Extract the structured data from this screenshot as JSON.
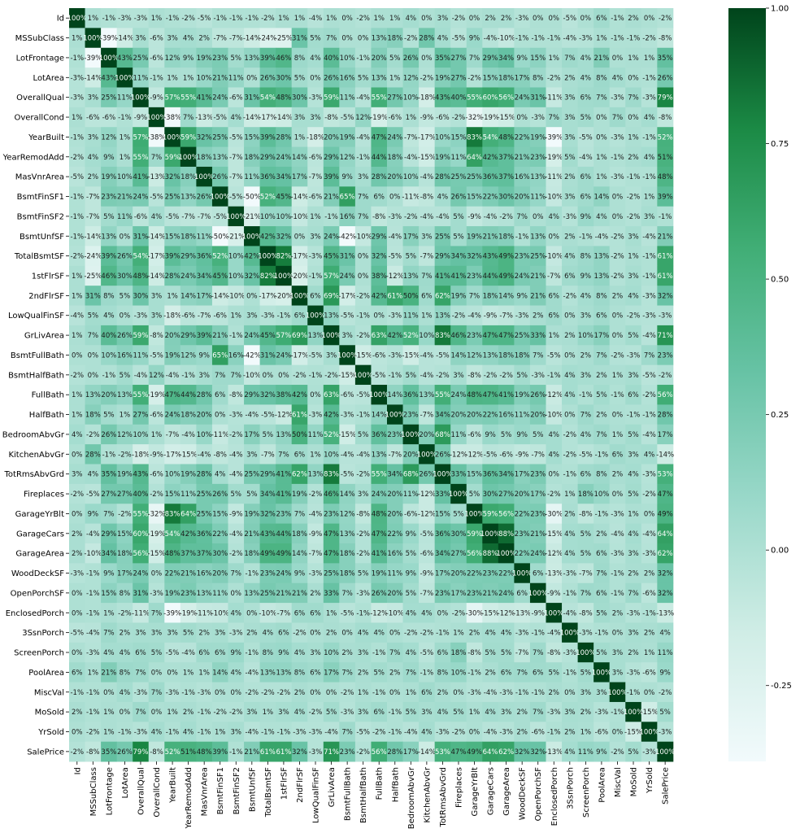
{
  "chart_data": {
    "type": "heatmap",
    "title": "",
    "xlabel": "",
    "ylabel": "",
    "labels": [
      "Id",
      "MSSubClass",
      "LotFrontage",
      "LotArea",
      "OverallQual",
      "OverallCond",
      "YearBuilt",
      "YearRemodAdd",
      "MasVnrArea",
      "BsmtFinSF1",
      "BsmtFinSF2",
      "BsmtUnfSF",
      "TotalBsmtSF",
      "1stFlrSF",
      "2ndFlrSF",
      "LowQualFinSF",
      "GrLivArea",
      "BsmtFullBath",
      "BsmtHalfBath",
      "FullBath",
      "HalfBath",
      "BedroomAbvGr",
      "KitchenAbvGr",
      "TotRmsAbvGrd",
      "Fireplaces",
      "GarageYrBlt",
      "GarageCars",
      "GarageArea",
      "WoodDeckSF",
      "OpenPorchSF",
      "EnclosedPorch",
      "3SsnPorch",
      "ScreenPorch",
      "PoolArea",
      "MiscVal",
      "MoSold",
      "YrSold",
      "SalePrice"
    ],
    "matrix": [
      [
        100,
        1,
        -1,
        -3,
        -3,
        1,
        -1,
        -2,
        -5,
        -1,
        -1,
        -1,
        -2,
        1,
        1,
        -4,
        1,
        0,
        -2,
        1,
        1,
        4,
        0,
        3,
        -2,
        0,
        2,
        2,
        -3,
        0,
        0,
        -5,
        0,
        6,
        -1,
        2,
        0,
        -2
      ],
      [
        1,
        100,
        -39,
        -14,
        3,
        -6,
        3,
        4,
        2,
        -7,
        -7,
        -14,
        -24,
        -25,
        31,
        5,
        7,
        0,
        0,
        13,
        18,
        -2,
        28,
        4,
        -5,
        9,
        -4,
        -10,
        -1,
        -1,
        -1,
        -4,
        -3,
        1,
        -1,
        -1,
        -2,
        -8
      ],
      [
        -1,
        -39,
        100,
        43,
        25,
        -6,
        12,
        9,
        19,
        23,
        5,
        13,
        39,
        46,
        8,
        4,
        40,
        10,
        -1,
        20,
        5,
        26,
        0,
        35,
        27,
        7,
        29,
        34,
        9,
        15,
        1,
        7,
        4,
        21,
        0,
        1,
        1,
        35
      ],
      [
        -3,
        -14,
        43,
        100,
        11,
        -1,
        1,
        1,
        10,
        21,
        11,
        0,
        26,
        30,
        5,
        0,
        26,
        16,
        5,
        13,
        1,
        12,
        -2,
        19,
        27,
        -2,
        15,
        18,
        17,
        8,
        -2,
        2,
        4,
        8,
        4,
        0,
        -1,
        26
      ],
      [
        -3,
        3,
        25,
        11,
        100,
        -9,
        57,
        55,
        41,
        24,
        -6,
        31,
        54,
        48,
        30,
        -3,
        59,
        11,
        -4,
        55,
        27,
        10,
        -18,
        43,
        40,
        55,
        60,
        56,
        24,
        31,
        -11,
        3,
        6,
        7,
        -3,
        7,
        -3,
        79
      ],
      [
        1,
        -6,
        -6,
        -1,
        -9,
        100,
        -38,
        7,
        -13,
        -5,
        4,
        -14,
        -17,
        -14,
        3,
        3,
        -8,
        -5,
        12,
        -19,
        -6,
        1,
        -9,
        -6,
        -2,
        -32,
        -19,
        -15,
        0,
        -3,
        7,
        3,
        5,
        0,
        7,
        0,
        4,
        -8
      ],
      [
        -1,
        3,
        12,
        1,
        57,
        -38,
        100,
        59,
        32,
        25,
        -5,
        15,
        39,
        28,
        1,
        -18,
        20,
        19,
        -4,
        47,
        24,
        -7,
        -17,
        10,
        15,
        83,
        54,
        48,
        22,
        19,
        -39,
        3,
        -5,
        0,
        -3,
        1,
        -1,
        52
      ],
      [
        -2,
        4,
        9,
        1,
        55,
        7,
        59,
        100,
        18,
        13,
        -7,
        18,
        29,
        24,
        14,
        -6,
        29,
        12,
        -1,
        44,
        18,
        -4,
        -15,
        19,
        11,
        64,
        42,
        37,
        21,
        23,
        -19,
        5,
        -4,
        1,
        -1,
        2,
        4,
        51
      ],
      [
        -5,
        2,
        19,
        10,
        41,
        -13,
        32,
        18,
        100,
        26,
        -7,
        11,
        36,
        34,
        17,
        -7,
        39,
        9,
        3,
        28,
        20,
        10,
        -4,
        28,
        25,
        25,
        36,
        37,
        16,
        13,
        -11,
        2,
        6,
        1,
        -3,
        -1,
        -1,
        48
      ],
      [
        -1,
        -7,
        23,
        21,
        24,
        -5,
        25,
        13,
        26,
        100,
        -5,
        -50,
        52,
        45,
        -14,
        -6,
        21,
        65,
        7,
        6,
        0,
        -11,
        -8,
        4,
        26,
        15,
        22,
        30,
        20,
        11,
        -10,
        3,
        6,
        14,
        0,
        -2,
        1,
        39
      ],
      [
        -1,
        -7,
        5,
        11,
        -6,
        4,
        -5,
        -7,
        -7,
        -5,
        100,
        -21,
        10,
        10,
        -10,
        1,
        -1,
        16,
        7,
        -8,
        -3,
        -2,
        -4,
        -4,
        5,
        -9,
        -4,
        -2,
        7,
        0,
        4,
        -3,
        9,
        4,
        0,
        -2,
        3,
        -1
      ],
      [
        -1,
        -14,
        13,
        0,
        31,
        -14,
        15,
        18,
        11,
        -50,
        -21,
        100,
        42,
        32,
        0,
        3,
        24,
        -42,
        -10,
        29,
        -4,
        17,
        3,
        25,
        5,
        19,
        21,
        18,
        -1,
        13,
        0,
        2,
        -1,
        -4,
        -2,
        3,
        -4,
        21
      ],
      [
        -2,
        -24,
        39,
        26,
        54,
        -17,
        39,
        29,
        36,
        52,
        10,
        42,
        100,
        82,
        -17,
        -3,
        45,
        31,
        0,
        32,
        -5,
        5,
        -7,
        29,
        34,
        32,
        43,
        49,
        23,
        25,
        -10,
        4,
        8,
        13,
        -2,
        1,
        -1,
        61
      ],
      [
        1,
        -25,
        46,
        30,
        48,
        -14,
        28,
        24,
        34,
        45,
        10,
        32,
        82,
        100,
        -20,
        -1,
        57,
        24,
        0,
        38,
        -12,
        13,
        7,
        41,
        41,
        23,
        44,
        49,
        24,
        21,
        -7,
        6,
        9,
        13,
        -2,
        3,
        -1,
        61
      ],
      [
        1,
        31,
        8,
        5,
        30,
        3,
        1,
        14,
        17,
        -14,
        -10,
        0,
        -17,
        -20,
        100,
        6,
        69,
        -17,
        -2,
        42,
        61,
        50,
        6,
        62,
        19,
        7,
        18,
        14,
        9,
        21,
        6,
        -2,
        4,
        8,
        2,
        4,
        -3,
        32
      ],
      [
        -4,
        5,
        4,
        0,
        -3,
        3,
        -18,
        -6,
        -7,
        -6,
        1,
        3,
        -3,
        -1,
        6,
        100,
        13,
        -5,
        -1,
        0,
        -3,
        11,
        1,
        13,
        -2,
        -4,
        -9,
        -7,
        -3,
        2,
        6,
        0,
        3,
        6,
        0,
        -2,
        -3,
        -3
      ],
      [
        1,
        7,
        40,
        26,
        59,
        -8,
        20,
        29,
        39,
        21,
        -1,
        24,
        45,
        57,
        69,
        13,
        100,
        3,
        -2,
        63,
        42,
        52,
        10,
        83,
        46,
        23,
        47,
        47,
        25,
        33,
        1,
        2,
        10,
        17,
        0,
        5,
        -4,
        71
      ],
      [
        0,
        0,
        10,
        16,
        11,
        -5,
        19,
        12,
        9,
        65,
        16,
        -42,
        31,
        24,
        -17,
        -5,
        3,
        100,
        -15,
        -6,
        -3,
        -15,
        -4,
        -5,
        14,
        12,
        13,
        18,
        18,
        7,
        -5,
        0,
        2,
        7,
        -2,
        -3,
        7,
        23
      ],
      [
        -2,
        0,
        -1,
        5,
        -4,
        12,
        -4,
        -1,
        3,
        7,
        7,
        -10,
        0,
        0,
        -2,
        -1,
        -2,
        -15,
        100,
        -5,
        -1,
        5,
        -4,
        -2,
        3,
        -8,
        -2,
        -2,
        5,
        -3,
        -1,
        4,
        3,
        2,
        1,
        3,
        -5,
        -2
      ],
      [
        1,
        13,
        20,
        13,
        55,
        -19,
        47,
        44,
        28,
        6,
        -8,
        29,
        32,
        38,
        42,
        0,
        63,
        -6,
        -5,
        100,
        14,
        36,
        13,
        55,
        24,
        48,
        47,
        41,
        19,
        26,
        -12,
        4,
        -1,
        5,
        -1,
        6,
        -2,
        56
      ],
      [
        1,
        18,
        5,
        1,
        27,
        -6,
        24,
        18,
        20,
        0,
        -3,
        -4,
        -5,
        -12,
        61,
        -3,
        42,
        -3,
        -1,
        14,
        100,
        23,
        -7,
        34,
        20,
        20,
        22,
        16,
        11,
        20,
        -10,
        0,
        7,
        2,
        0,
        -1,
        -1,
        28
      ],
      [
        4,
        -2,
        26,
        12,
        10,
        1,
        -7,
        -4,
        10,
        -11,
        -2,
        17,
        5,
        13,
        50,
        11,
        52,
        -15,
        5,
        36,
        23,
        100,
        20,
        68,
        11,
        -6,
        9,
        5,
        9,
        5,
        4,
        -2,
        4,
        7,
        1,
        5,
        -4,
        17
      ],
      [
        0,
        28,
        -1,
        -2,
        -18,
        -9,
        -17,
        -15,
        -4,
        -8,
        -4,
        3,
        -7,
        7,
        6,
        1,
        10,
        -4,
        -4,
        13,
        -7,
        20,
        100,
        26,
        -12,
        -12,
        -5,
        -6,
        -9,
        -7,
        4,
        -2,
        -5,
        -1,
        6,
        3,
        4,
        -14
      ],
      [
        3,
        4,
        35,
        19,
        43,
        -6,
        10,
        19,
        28,
        4,
        -4,
        25,
        29,
        41,
        62,
        13,
        83,
        -5,
        -2,
        55,
        34,
        68,
        26,
        100,
        33,
        15,
        36,
        34,
        17,
        23,
        0,
        -1,
        6,
        8,
        2,
        4,
        -3,
        53
      ],
      [
        -2,
        -5,
        27,
        27,
        40,
        -2,
        15,
        11,
        25,
        26,
        5,
        5,
        34,
        41,
        19,
        -2,
        46,
        14,
        3,
        24,
        20,
        11,
        -12,
        33,
        100,
        5,
        30,
        27,
        20,
        17,
        -2,
        1,
        18,
        10,
        0,
        5,
        -2,
        47
      ],
      [
        0,
        9,
        7,
        -2,
        55,
        -32,
        83,
        64,
        25,
        15,
        -9,
        19,
        32,
        23,
        7,
        -4,
        23,
        12,
        -8,
        48,
        20,
        -6,
        -12,
        15,
        5,
        100,
        59,
        56,
        22,
        23,
        -30,
        2,
        -8,
        -1,
        -3,
        1,
        0,
        49
      ],
      [
        2,
        -4,
        29,
        15,
        60,
        -19,
        54,
        42,
        36,
        22,
        -4,
        21,
        43,
        44,
        18,
        -9,
        47,
        13,
        -2,
        47,
        22,
        9,
        -5,
        36,
        30,
        59,
        100,
        88,
        23,
        21,
        -15,
        4,
        5,
        2,
        -4,
        4,
        -4,
        64
      ],
      [
        2,
        -10,
        34,
        18,
        56,
        -15,
        48,
        37,
        37,
        30,
        -2,
        18,
        49,
        49,
        14,
        -7,
        47,
        18,
        -2,
        41,
        16,
        5,
        -6,
        34,
        27,
        56,
        88,
        100,
        22,
        24,
        -12,
        4,
        5,
        6,
        -3,
        3,
        -3,
        62
      ],
      [
        -3,
        -1,
        9,
        17,
        24,
        0,
        22,
        21,
        16,
        20,
        7,
        -1,
        23,
        24,
        9,
        -3,
        25,
        18,
        5,
        19,
        11,
        9,
        -9,
        17,
        20,
        22,
        23,
        22,
        100,
        6,
        -13,
        -3,
        -7,
        7,
        -1,
        2,
        2,
        32
      ],
      [
        0,
        -1,
        15,
        8,
        31,
        -3,
        19,
        23,
        13,
        11,
        0,
        13,
        25,
        21,
        21,
        2,
        33,
        7,
        -3,
        26,
        20,
        5,
        -7,
        23,
        17,
        23,
        21,
        24,
        6,
        100,
        -9,
        -1,
        7,
        6,
        -1,
        7,
        -6,
        32
      ],
      [
        0,
        -1,
        1,
        -2,
        -11,
        7,
        -39,
        -19,
        -11,
        -10,
        4,
        0,
        -10,
        -7,
        6,
        6,
        1,
        -5,
        -1,
        -12,
        -10,
        4,
        4,
        0,
        -2,
        -30,
        -15,
        -12,
        -13,
        -9,
        100,
        -4,
        -8,
        5,
        2,
        -3,
        -1,
        -13
      ],
      [
        -5,
        -4,
        7,
        2,
        3,
        3,
        3,
        5,
        2,
        3,
        -3,
        2,
        4,
        6,
        -2,
        0,
        2,
        0,
        4,
        4,
        0,
        -2,
        -2,
        -1,
        1,
        2,
        4,
        4,
        -3,
        -1,
        -4,
        100,
        -3,
        -1,
        0,
        3,
        2,
        4
      ],
      [
        0,
        -3,
        4,
        4,
        6,
        5,
        -5,
        -4,
        6,
        6,
        9,
        -1,
        8,
        9,
        4,
        3,
        10,
        2,
        3,
        -1,
        7,
        4,
        -5,
        6,
        18,
        -8,
        5,
        5,
        -7,
        7,
        -8,
        -3,
        100,
        5,
        3,
        2,
        1,
        11
      ],
      [
        6,
        1,
        21,
        8,
        7,
        0,
        0,
        1,
        1,
        14,
        4,
        -4,
        13,
        13,
        8,
        6,
        17,
        7,
        2,
        5,
        2,
        7,
        -1,
        8,
        10,
        -1,
        2,
        6,
        7,
        6,
        5,
        -1,
        5,
        100,
        3,
        -3,
        -6,
        9
      ],
      [
        -1,
        -1,
        0,
        4,
        -3,
        7,
        -3,
        -1,
        -3,
        0,
        0,
        -2,
        -2,
        -2,
        2,
        0,
        0,
        -2,
        1,
        -1,
        0,
        1,
        6,
        2,
        0,
        -3,
        -4,
        -3,
        -1,
        -1,
        2,
        0,
        3,
        3,
        100,
        -1,
        0,
        -2
      ],
      [
        2,
        -1,
        1,
        0,
        7,
        0,
        1,
        2,
        -1,
        -2,
        -2,
        3,
        1,
        3,
        4,
        -2,
        5,
        -3,
        3,
        6,
        -1,
        5,
        3,
        4,
        5,
        1,
        4,
        3,
        2,
        7,
        -3,
        3,
        2,
        -3,
        -1,
        100,
        -15,
        5
      ],
      [
        0,
        -2,
        1,
        -1,
        -3,
        4,
        -1,
        4,
        -1,
        1,
        3,
        -4,
        -1,
        -1,
        -3,
        -3,
        -4,
        7,
        -5,
        -2,
        -1,
        -4,
        4,
        -3,
        -2,
        0,
        -4,
        -3,
        2,
        -6,
        -1,
        2,
        1,
        -6,
        0,
        -15,
        100,
        -3
      ],
      [
        -2,
        -8,
        35,
        26,
        79,
        -8,
        52,
        51,
        48,
        39,
        -1,
        21,
        61,
        61,
        32,
        -3,
        71,
        23,
        -2,
        56,
        28,
        17,
        -14,
        53,
        47,
        49,
        64,
        62,
        32,
        32,
        -13,
        4,
        11,
        9,
        -2,
        5,
        -3,
        100
      ]
    ],
    "cell_format": "percent",
    "colorscale": "Greens (light to dark)",
    "color_low": "#f2fafc",
    "color_high": "#00441b",
    "vmin": -0.39,
    "vmax": 1.0,
    "colorbar_ticks": [
      "-0.25",
      "0.00",
      "0.25",
      "0.50",
      "0.75",
      "1.00"
    ],
    "colorbar_tick_values": [
      -0.25,
      0.0,
      0.25,
      0.5,
      0.75,
      1.0
    ],
    "legend": "colorbar-right",
    "grid": false
  }
}
